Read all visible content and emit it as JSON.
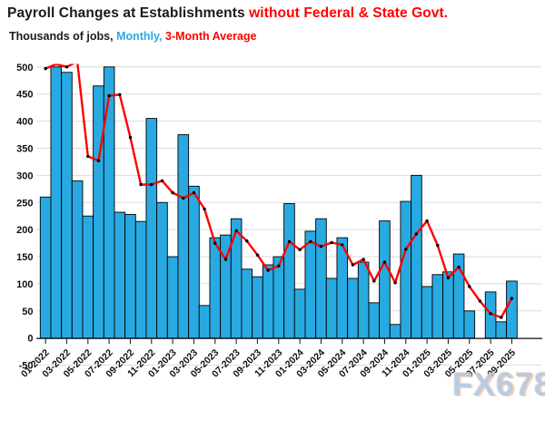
{
  "header": {
    "title_black": "Payroll Changes at Establishments",
    "title_red": "without Federal & State Govt.",
    "subtitle_black": "Thousands of jobs,",
    "subtitle_blue": "Monthly,",
    "subtitle_red": "3-Month Average"
  },
  "watermark": "FX678",
  "chart_data": {
    "type": "bar",
    "title": "Payroll Changes at Establishments without Federal & State Govt.",
    "subtitle": "Thousands of jobs, Monthly, 3-Month Average",
    "xlabel": "",
    "ylabel": "Thousands of jobs",
    "ylim": [
      -50,
      500
    ],
    "y_ticks": [
      500,
      450,
      400,
      350,
      300,
      250,
      200,
      150,
      100,
      50,
      0,
      -50
    ],
    "x_tick_every": 2,
    "grid": true,
    "legend_position": "in-subtitle",
    "clipped_at_top": [
      "02-2022",
      "07-2022"
    ],
    "months": [
      "01-2022",
      "02-2022",
      "03-2022",
      "04-2022",
      "05-2022",
      "06-2022",
      "07-2022",
      "08-2022",
      "09-2022",
      "10-2022",
      "11-2022",
      "12-2022",
      "01-2023",
      "02-2023",
      "03-2023",
      "04-2023",
      "05-2023",
      "06-2023",
      "07-2023",
      "08-2023",
      "09-2023",
      "10-2023",
      "11-2023",
      "12-2023",
      "01-2024",
      "02-2024",
      "03-2024",
      "04-2024",
      "05-2024",
      "06-2024",
      "07-2024",
      "08-2024",
      "09-2024",
      "10-2024",
      "11-2024",
      "12-2024",
      "01-2025",
      "02-2025",
      "03-2025",
      "04-2025",
      "05-2025",
      "06-2025",
      "07-2025",
      "08-2025",
      "09-2025"
    ],
    "series": [
      {
        "name": "Monthly",
        "type": "bar",
        "values": [
          260,
          500,
          490,
          290,
          225,
          465,
          500,
          232,
          228,
          215,
          405,
          250,
          150,
          375,
          280,
          60,
          185,
          190,
          220,
          127,
          113,
          135,
          150,
          248,
          90,
          197,
          220,
          110,
          185,
          110,
          140,
          65,
          216,
          25,
          252,
          300,
          95,
          117,
          122,
          155,
          50,
          0,
          85,
          30,
          105
        ]
      },
      {
        "name": "3-Month Average",
        "type": "line",
        "values": [
          497,
          505,
          500,
          510,
          335,
          327,
          447,
          449,
          370,
          283,
          283,
          290,
          268,
          258,
          268,
          238,
          175,
          145,
          198,
          179,
          153,
          125,
          133,
          178,
          163,
          178,
          169,
          176,
          172,
          135,
          145,
          105,
          140,
          102,
          164,
          192,
          216,
          171,
          111,
          131,
          95,
          68,
          45,
          38,
          73
        ]
      }
    ],
    "colors": {
      "bar": "#29a9e2",
      "bar_border": "#000000",
      "line": "#ff0000",
      "dot": "#000000",
      "grid": "#dbdbdb",
      "axis": "#262626",
      "label": "#111111"
    }
  }
}
